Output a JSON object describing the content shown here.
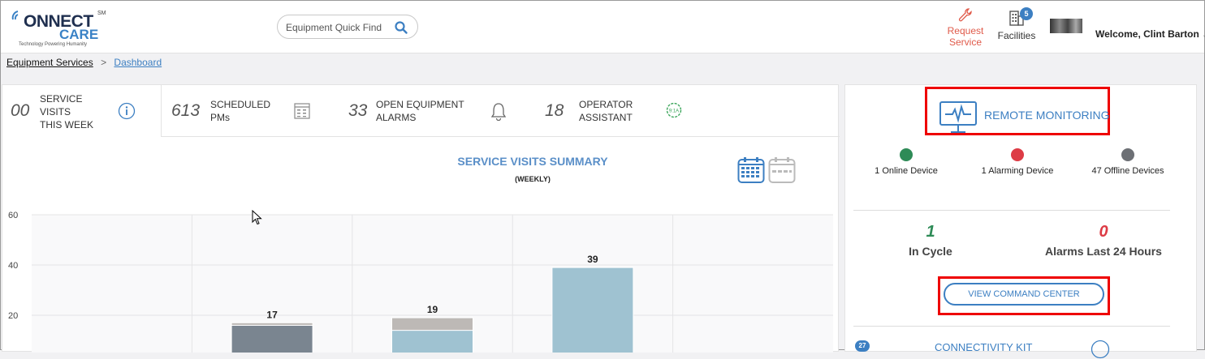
{
  "header": {
    "logo_line1": "ONNECT",
    "logo_line2": "CARE",
    "logo_sm": "SM",
    "logo_tagline": "Technology Powering Humanity",
    "search_placeholder": "Equipment Quick Find",
    "request_service_line1": "Request",
    "request_service_line2": "Service",
    "facilities_label": "Facilities",
    "facilities_badge": "5",
    "welcome": "Welcome, Clint Barton",
    "accent": "#3c7fc2",
    "request_color": "#e05a4a"
  },
  "breadcrumb": {
    "root": "Equipment Services",
    "separator": ">",
    "current": "Dashboard"
  },
  "tabs": [
    {
      "num": "00",
      "label_lines": [
        "SERVICE",
        "VISITS",
        "THIS WEEK"
      ],
      "icon": "info-icon",
      "active": true
    },
    {
      "num": "613",
      "label_lines": [
        "SCHEDULED",
        "PMs"
      ],
      "icon": "calendar-grid-icon"
    },
    {
      "num": "33",
      "label_lines": [
        "OPEN EQUIPMENT",
        "ALARMS"
      ],
      "icon": "bell-icon"
    },
    {
      "num": "18",
      "label_lines": [
        "OPERATOR",
        "ASSISTANT"
      ],
      "icon": "badge-icon"
    }
  ],
  "chart": {
    "title": "SERVICE VISITS SUMMARY",
    "subtitle": "(WEEKLY)"
  },
  "chart_data": {
    "type": "bar",
    "title": "SERVICE VISITS SUMMARY",
    "subtitle": "(WEEKLY)",
    "ylim": [
      0,
      60
    ],
    "yticks": [
      20,
      40,
      60
    ],
    "grid": true,
    "series": [
      {
        "name": "",
        "color": "#7a8590",
        "values": [
          0,
          16,
          0,
          0,
          0
        ]
      },
      {
        "name": "",
        "color": "#9fc2d1",
        "values": [
          0,
          0,
          14,
          39,
          0
        ]
      },
      {
        "name": "",
        "color": "#bdb9b6",
        "values": [
          0,
          1,
          5,
          0,
          0
        ]
      }
    ],
    "totals": [
      null,
      17,
      19,
      39,
      null
    ]
  },
  "remote_monitoring": {
    "title": "REMOTE MONITORING",
    "devices": [
      {
        "label": "1 Online Device",
        "color": "#2e8b57"
      },
      {
        "label": "1 Alarming Device",
        "color": "#dd3b45"
      },
      {
        "label": "47 Offline Devices",
        "color": "#6d7075"
      }
    ],
    "in_cycle_value": "1",
    "in_cycle_label": "In Cycle",
    "in_cycle_color": "#2e8b57",
    "alarms_value": "0",
    "alarms_label": "Alarms Last 24 Hours",
    "alarms_color": "#dd3b45",
    "button": "VIEW COMMAND CENTER",
    "highlight_color": "#e00000"
  },
  "connectivity": {
    "title": "CONNECTIVITY KIT",
    "badge": "27"
  }
}
